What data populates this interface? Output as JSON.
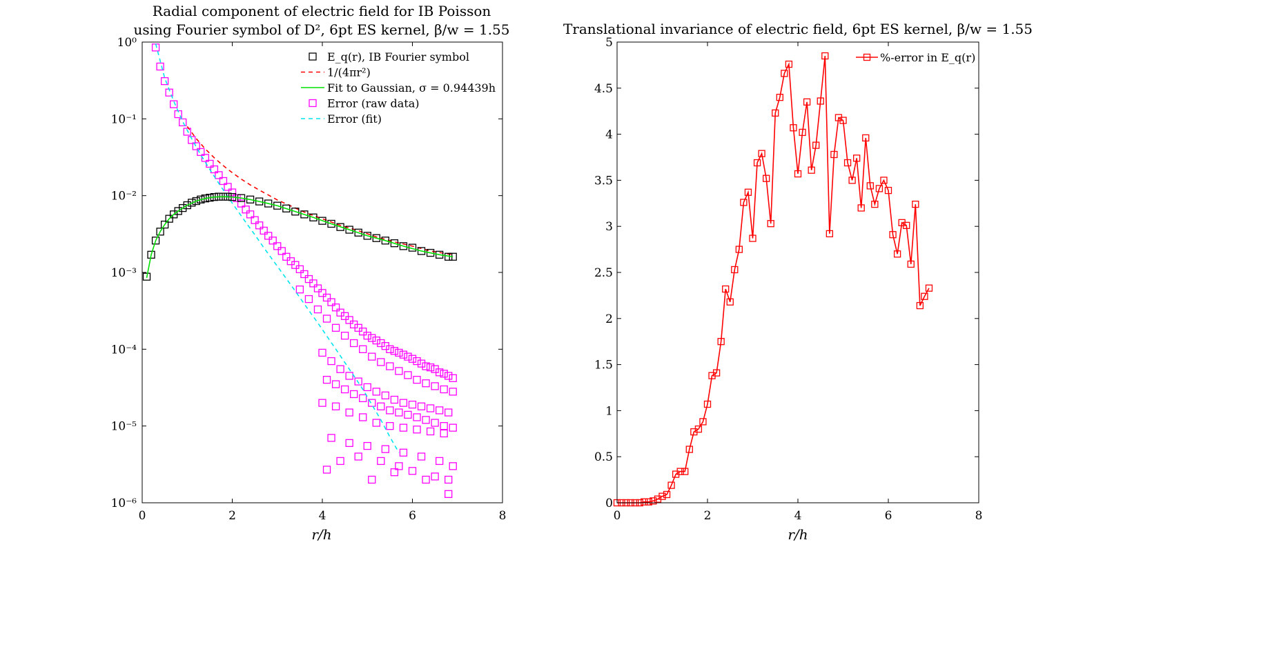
{
  "chart_data": [
    {
      "type": "scatter",
      "title_line1": "Radial component of electric field for IB Poisson",
      "title_line2": "using Fourier symbol of D², 6pt ES kernel, β/w = 1.55",
      "xlabel": "r/h",
      "ylabel": "",
      "xlim": [
        0,
        8
      ],
      "ylim": [
        1e-06,
        1
      ],
      "yscale": "log",
      "xticks": [
        "0",
        "2",
        "4",
        "6",
        "8"
      ],
      "yticks": [
        "10⁰",
        "10⁻¹",
        "10⁻²",
        "10⁻³",
        "10⁻⁴",
        "10⁻⁵",
        "10⁻⁶"
      ],
      "grid": false,
      "legend_position": "top-right",
      "colors": {
        "field": "#000000",
        "coulomb": "#ff0000",
        "fit": "#00e000",
        "error": "#ff00ff",
        "error_fit": "#00e5ee"
      },
      "series": [
        {
          "name": "E_q(r), IB Fourier symbol",
          "marker": "square",
          "line": "none",
          "x": [
            0.1,
            0.2,
            0.3,
            0.4,
            0.5,
            0.6,
            0.7,
            0.8,
            0.9,
            1.0,
            1.1,
            1.2,
            1.3,
            1.4,
            1.5,
            1.6,
            1.7,
            1.8,
            1.9,
            2.0,
            2.2,
            2.4,
            2.6,
            2.8,
            3.0,
            3.2,
            3.4,
            3.6,
            3.8,
            4.0,
            4.2,
            4.4,
            4.6,
            4.8,
            5.0,
            5.2,
            5.4,
            5.6,
            5.8,
            6.0,
            6.2,
            6.4,
            6.6,
            6.8,
            6.9
          ],
          "y": [
            0.00088,
            0.0017,
            0.0026,
            0.0034,
            0.0042,
            0.005,
            0.0057,
            0.0063,
            0.0069,
            0.0075,
            0.0081,
            0.0085,
            0.0089,
            0.0092,
            0.0094,
            0.0096,
            0.0097,
            0.0097,
            0.0097,
            0.0096,
            0.0093,
            0.0089,
            0.0084,
            0.0079,
            0.0074,
            0.0068,
            0.0062,
            0.0057,
            0.0052,
            0.0047,
            0.0043,
            0.0039,
            0.0036,
            0.0033,
            0.003,
            0.0028,
            0.0026,
            0.0024,
            0.0022,
            0.0021,
            0.0019,
            0.0018,
            0.0017,
            0.0016,
            0.0016
          ]
        },
        {
          "name": "1/(4πr²)",
          "line": "dashed",
          "marker": "none",
          "x": [
            1.0,
            1.2,
            1.4,
            1.6,
            1.8,
            2.0,
            2.2,
            2.4,
            2.6,
            2.8,
            3.0,
            3.2,
            3.4,
            3.6,
            3.8,
            4.0,
            4.4,
            4.8,
            5.2,
            5.6,
            6.0,
            6.4,
            6.9
          ],
          "y": [
            0.0796,
            0.0553,
            0.0406,
            0.0311,
            0.0246,
            0.0199,
            0.0164,
            0.0138,
            0.0118,
            0.0102,
            0.0088,
            0.0078,
            0.0069,
            0.0061,
            0.0055,
            0.005,
            0.0041,
            0.0035,
            0.0029,
            0.0025,
            0.0022,
            0.0019,
            0.0017
          ]
        },
        {
          "name": "Fit to Gaussian, σ = 0.94439h",
          "line": "solid",
          "marker": "none",
          "x": [
            0.1,
            0.2,
            0.3,
            0.4,
            0.5,
            0.6,
            0.7,
            0.8,
            0.9,
            1.0,
            1.2,
            1.4,
            1.6,
            1.8,
            2.0,
            2.2,
            2.4,
            2.6,
            2.8,
            3.0,
            3.4,
            3.8,
            4.2,
            4.6,
            5.0,
            5.4,
            5.8,
            6.2,
            6.6,
            6.9
          ],
          "y": [
            0.00085,
            0.0017,
            0.0026,
            0.0034,
            0.0042,
            0.005,
            0.0057,
            0.0063,
            0.0069,
            0.0075,
            0.0085,
            0.0092,
            0.0096,
            0.0097,
            0.0096,
            0.0093,
            0.0089,
            0.0084,
            0.0079,
            0.0074,
            0.0062,
            0.0052,
            0.0043,
            0.0036,
            0.003,
            0.0026,
            0.0022,
            0.0019,
            0.0017,
            0.0016
          ]
        },
        {
          "name": "Error (raw data)",
          "marker": "square",
          "line": "none",
          "x": [
            0.3,
            0.4,
            0.5,
            0.6,
            0.7,
            0.8,
            0.9,
            1.0,
            1.1,
            1.2,
            1.3,
            1.4,
            1.5,
            1.6,
            1.7,
            1.8,
            1.9,
            2.0,
            2.1,
            2.2,
            2.3,
            2.4,
            2.5,
            2.6,
            2.7,
            2.8,
            2.9,
            3.0,
            3.1,
            3.2,
            3.3,
            3.4,
            3.5,
            3.6,
            3.7,
            3.8,
            3.9,
            4.0,
            4.1,
            4.2,
            4.3,
            4.4,
            4.5,
            4.6,
            4.7,
            4.8,
            4.9,
            5.0,
            5.1,
            5.2,
            5.3,
            5.4,
            5.5,
            5.6,
            5.7,
            5.8,
            5.9,
            6.0,
            6.1,
            6.2,
            6.3,
            6.4,
            6.5,
            6.6,
            6.7,
            6.8,
            6.9,
            3.5,
            3.7,
            3.9,
            4.1,
            4.3,
            4.5,
            4.7,
            4.9,
            5.1,
            5.3,
            5.5,
            5.7,
            5.9,
            6.1,
            6.3,
            6.5,
            6.7,
            6.9,
            4.0,
            4.2,
            4.4,
            4.6,
            4.8,
            5.0,
            5.2,
            5.4,
            5.6,
            5.8,
            6.0,
            6.2,
            6.4,
            6.6,
            6.8,
            4.1,
            4.3,
            4.5,
            4.7,
            4.9,
            5.1,
            5.3,
            5.5,
            5.7,
            5.9,
            6.1,
            6.3,
            6.5,
            6.7,
            6.9,
            4.0,
            4.3,
            4.6,
            4.9,
            5.2,
            5.5,
            5.8,
            6.1,
            6.4,
            6.7,
            4.2,
            4.6,
            5.0,
            5.4,
            5.8,
            6.2,
            6.6,
            6.9,
            4.1,
            4.8,
            5.3,
            5.7,
            6.0,
            6.5,
            6.8,
            4.4,
            5.1,
            5.6,
            6.3,
            6.8
          ],
          "y": [
            0.85,
            0.48,
            0.31,
            0.22,
            0.155,
            0.115,
            0.09,
            0.068,
            0.053,
            0.044,
            0.037,
            0.031,
            0.026,
            0.022,
            0.0185,
            0.0155,
            0.013,
            0.011,
            0.0093,
            0.0079,
            0.0066,
            0.0057,
            0.0048,
            0.0041,
            0.0035,
            0.003,
            0.0026,
            0.0022,
            0.0019,
            0.0016,
            0.0014,
            0.00125,
            0.0011,
            0.00095,
            0.00082,
            0.00072,
            0.00062,
            0.00054,
            0.00047,
            0.00041,
            0.00035,
            0.0003,
            0.00027,
            0.00024,
            0.00021,
            0.00019,
            0.00017,
            0.00015,
            0.00014,
            0.00013,
            0.00012,
            0.00011,
            0.0001,
            9.5e-05,
            9e-05,
            8.5e-05,
            8e-05,
            7.5e-05,
            7e-05,
            6.5e-05,
            6e-05,
            5.8e-05,
            5.5e-05,
            5e-05,
            4.8e-05,
            4.5e-05,
            4.2e-05,
            0.0006,
            0.00045,
            0.00033,
            0.00025,
            0.00019,
            0.00015,
            0.00012,
            0.0001,
            8e-05,
            6.8e-05,
            6e-05,
            5.2e-05,
            4.6e-05,
            4e-05,
            3.6e-05,
            3.3e-05,
            3e-05,
            2.8e-05,
            9e-05,
            7e-05,
            5.5e-05,
            4.5e-05,
            3.8e-05,
            3.2e-05,
            2.8e-05,
            2.5e-05,
            2.2e-05,
            2e-05,
            1.9e-05,
            1.8e-05,
            1.7e-05,
            1.6e-05,
            1.5e-05,
            4e-05,
            3.5e-05,
            3e-05,
            2.6e-05,
            2.3e-05,
            2e-05,
            1.8e-05,
            1.6e-05,
            1.5e-05,
            1.4e-05,
            1.3e-05,
            1.2e-05,
            1.1e-05,
            1e-05,
            9.5e-06,
            2e-05,
            1.8e-05,
            1.5e-05,
            1.3e-05,
            1.1e-05,
            1e-05,
            9.5e-06,
            9e-06,
            8.5e-06,
            8e-06,
            7e-06,
            6e-06,
            5.5e-06,
            5e-06,
            4.5e-06,
            4e-06,
            3.5e-06,
            3e-06,
            2.7e-06,
            4e-06,
            3.5e-06,
            3e-06,
            2.6e-06,
            2.2e-06,
            2e-06,
            3.5e-06,
            2e-06,
            2.5e-06,
            2e-06,
            1.3e-06
          ]
        },
        {
          "name": "Error (fit)",
          "line": "dashed",
          "marker": "none",
          "x": [
            0.3,
            0.5,
            0.7,
            0.9,
            1.1,
            1.3,
            1.5,
            1.7,
            1.9,
            2.1,
            2.3,
            2.5,
            2.7,
            2.9,
            3.1,
            3.3,
            3.5,
            3.7,
            3.9,
            4.1,
            4.3,
            4.5,
            4.7,
            4.9,
            5.1,
            5.3,
            5.5,
            5.7
          ],
          "y": [
            0.95,
            0.34,
            0.17,
            0.092,
            0.055,
            0.034,
            0.022,
            0.0145,
            0.0097,
            0.0066,
            0.0045,
            0.0031,
            0.0021,
            0.00145,
            0.001,
            0.00069,
            0.00047,
            0.00032,
            0.00022,
            0.000148,
            0.0001,
            6.7e-05,
            4.5e-05,
            3e-05,
            1.9e-05,
            1.2e-05,
            7.2e-06,
            4.5e-06
          ]
        }
      ]
    },
    {
      "type": "line",
      "title": "Translational invariance of electric field, 6pt ES kernel, β/w = 1.55",
      "xlabel": "r/h",
      "ylabel": "",
      "xlim": [
        0,
        8
      ],
      "ylim": [
        0,
        5
      ],
      "xticks": [
        "0",
        "2",
        "4",
        "6",
        "8"
      ],
      "yticks": [
        "0",
        "0.5",
        "1",
        "1.5",
        "2",
        "2.5",
        "3",
        "3.5",
        "4",
        "4.5",
        "5"
      ],
      "grid": false,
      "legend_position": "top-right",
      "colors": {
        "series": "#ff0000"
      },
      "series": [
        {
          "name": "%-error in E_q(r)",
          "marker": "square",
          "line": "solid",
          "x": [
            0.0,
            0.1,
            0.2,
            0.3,
            0.4,
            0.5,
            0.6,
            0.7,
            0.8,
            0.9,
            1.0,
            1.1,
            1.2,
            1.3,
            1.4,
            1.5,
            1.6,
            1.7,
            1.8,
            1.9,
            2.0,
            2.1,
            2.2,
            2.3,
            2.4,
            2.5,
            2.6,
            2.7,
            2.8,
            2.9,
            3.0,
            3.1,
            3.2,
            3.3,
            3.4,
            3.5,
            3.6,
            3.7,
            3.8,
            3.9,
            4.0,
            4.1,
            4.2,
            4.3,
            4.4,
            4.5,
            4.6,
            4.7,
            4.8,
            4.9,
            5.0,
            5.1,
            5.2,
            5.3,
            5.4,
            5.5,
            5.6,
            5.7,
            5.8,
            5.9,
            6.0,
            6.1,
            6.2,
            6.3,
            6.4,
            6.5,
            6.6,
            6.7,
            6.8,
            6.9
          ],
          "y": [
            0.0,
            0.0,
            0.0,
            0.0,
            0.0,
            0.0,
            0.01,
            0.01,
            0.02,
            0.04,
            0.07,
            0.09,
            0.19,
            0.31,
            0.34,
            0.34,
            0.58,
            0.77,
            0.8,
            0.88,
            1.07,
            1.38,
            1.41,
            1.75,
            2.32,
            2.18,
            2.53,
            2.75,
            3.26,
            3.37,
            2.87,
            3.69,
            3.79,
            3.52,
            3.03,
            4.23,
            4.4,
            4.66,
            4.76,
            4.07,
            3.57,
            4.02,
            4.35,
            3.61,
            3.88,
            4.36,
            4.85,
            2.92,
            3.78,
            4.18,
            4.15,
            3.69,
            3.5,
            3.74,
            3.2,
            3.96,
            3.44,
            3.24,
            3.41,
            3.5,
            3.39,
            2.91,
            2.7,
            3.04,
            3.01,
            2.59,
            3.24,
            2.14,
            2.24,
            2.33
          ]
        }
      ]
    }
  ]
}
